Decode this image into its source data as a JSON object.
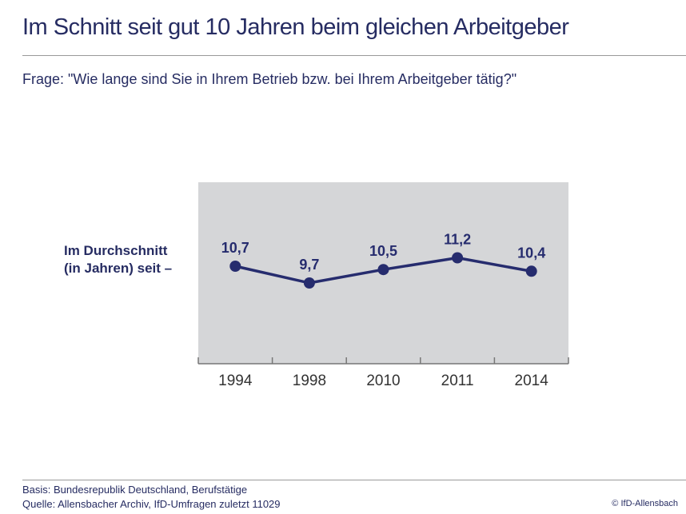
{
  "title": "Im Schnitt seit gut 10 Jahren beim gleichen Arbeitgeber",
  "question": "Frage: \"Wie lange sind Sie in Ihrem Betrieb bzw. bei Ihrem Arbeitgeber tätig?\"",
  "footer": {
    "basis": "Basis: Bundesrepublik Deutschland, Berufstätige",
    "source": "Quelle: Allensbacher Archiv, IfD-Umfragen zuletzt 11029",
    "copyright": "© IfD-Allensbach"
  },
  "colors": {
    "line": "#262c6e",
    "plot_bg": "#d5d6d8",
    "text": "#262c62"
  },
  "chart_data": {
    "type": "line",
    "title": "Im Schnitt seit gut 10 Jahren beim gleichen Arbeitgeber",
    "ylabel_lines": [
      "Im Durchschnitt",
      "(in Jahren) seit  –"
    ],
    "categories": [
      "1994",
      "1998",
      "2010",
      "2011",
      "2014"
    ],
    "values": [
      10.7,
      9.7,
      10.5,
      11.2,
      10.4
    ],
    "labels": [
      "10,7",
      "9,7",
      "10,5",
      "11,2",
      "10,4"
    ],
    "grid": false,
    "legend": "none"
  }
}
